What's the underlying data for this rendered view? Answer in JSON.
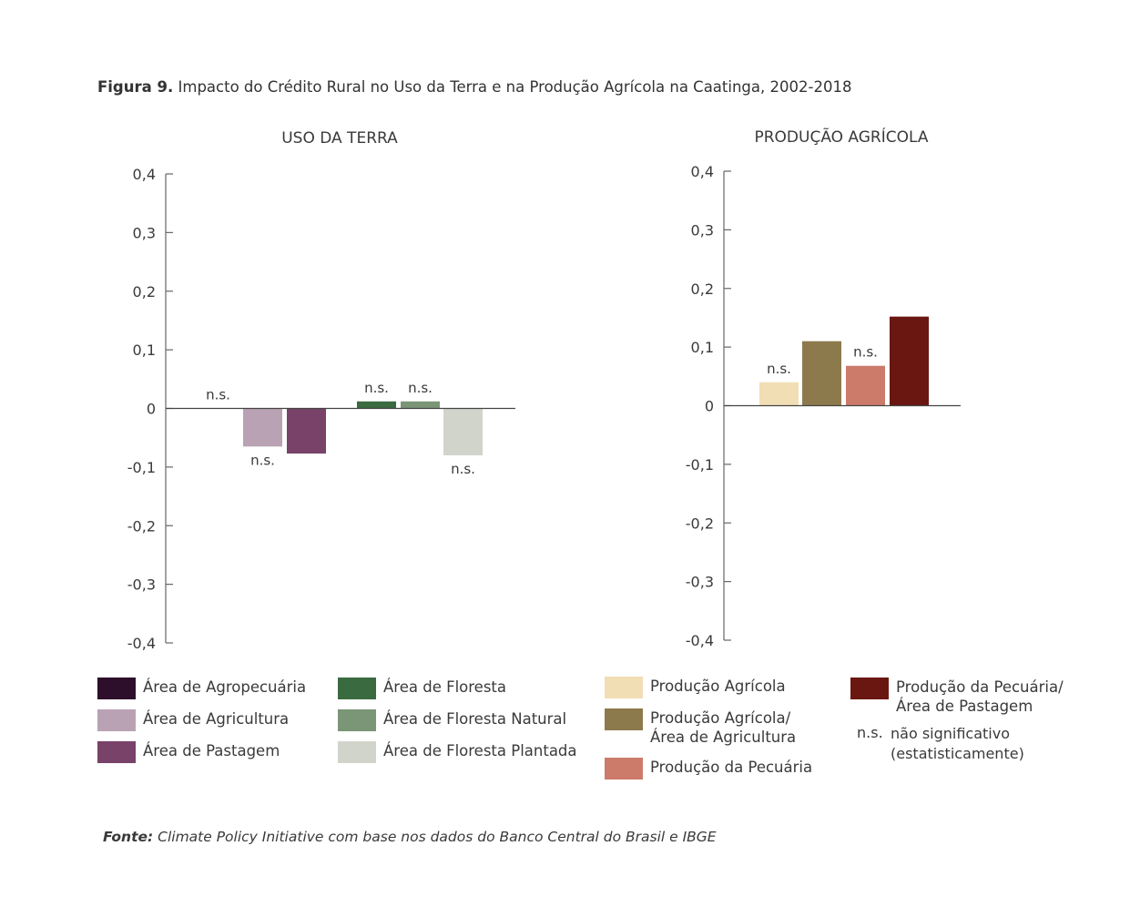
{
  "figure": {
    "label": "Figura 9.",
    "title": "Impacto do Crédito Rural no Uso da Terra e na Produção Agrícola na Caatinga, 2002-2018"
  },
  "chart_data": [
    {
      "type": "bar",
      "title": "USO DA TERRA",
      "ylim": [
        -0.4,
        0.4
      ],
      "yticks": [
        "0,4",
        "0,3",
        "0,2",
        "0,1",
        "0",
        "-0,1",
        "-0,2",
        "-0,3",
        "-0,4"
      ],
      "series": [
        {
          "name": "Área de Agropecuária",
          "value": 0,
          "color": "#2e0f2b",
          "annotation": "n.s."
        },
        {
          "name": "Área de Agricultura",
          "value": -0.065,
          "color": "#b9a2b3",
          "annotation": "n.s."
        },
        {
          "name": "Área de Pastagem",
          "value": -0.077,
          "color": "#784269",
          "annotation": ""
        },
        {
          "name": "Área de Floresta",
          "value": 0.012,
          "color": "#3a6a40",
          "annotation": "n.s."
        },
        {
          "name": "Área de Floresta Natural",
          "value": 0.012,
          "color": "#7a9676",
          "annotation": "n.s."
        },
        {
          "name": "Área de Floresta Plantada",
          "value": -0.08,
          "color": "#d1d4cb",
          "annotation": "n.s."
        }
      ]
    },
    {
      "type": "bar",
      "title": "PRODUÇÃO AGRÍCOLA",
      "ylim": [
        -0.4,
        0.4
      ],
      "yticks": [
        "0,4",
        "0,3",
        "0,2",
        "0,1",
        "0",
        "-0,1",
        "-0,2",
        "-0,3",
        "-0,4"
      ],
      "series": [
        {
          "name": "Produção Agrícola",
          "value": 0.04,
          "color": "#f1deb4",
          "annotation": "n.s."
        },
        {
          "name": "Produção Agrícola/ Área de Agricultura",
          "value": 0.11,
          "color": "#8d7a4c",
          "annotation": ""
        },
        {
          "name": "Produção da Pecuária",
          "value": 0.068,
          "color": "#cc7a6a",
          "annotation": "n.s."
        },
        {
          "name": "Produção da Pecuária/ Área de Pastagem",
          "value": 0.152,
          "color": "#6a1712",
          "annotation": ""
        }
      ]
    }
  ],
  "legend": {
    "col1": [
      {
        "label": "Área de Agropecuária",
        "color": "#2e0f2b"
      },
      {
        "label": "Área de Agricultura",
        "color": "#b9a2b3"
      },
      {
        "label": "Área de Pastagem",
        "color": "#784269"
      }
    ],
    "col2": [
      {
        "label": "Área de Floresta",
        "color": "#3a6a40"
      },
      {
        "label": "Área de Floresta Natural",
        "color": "#7a9676"
      },
      {
        "label": "Área de Floresta Plantada",
        "color": "#d1d4cb"
      }
    ],
    "col3": [
      {
        "label": "Produção Agrícola",
        "color": "#f1deb4"
      },
      {
        "label_line1": "Produção Agrícola/",
        "label_line2": "Área de Agricultura",
        "color": "#8d7a4c"
      },
      {
        "label": "Produção da Pecuária",
        "color": "#cc7a6a"
      }
    ],
    "col4": [
      {
        "label_line1": "Produção da Pecuária/",
        "label_line2": "Área de Pastagem",
        "color": "#6a1712"
      }
    ],
    "ns_note": {
      "abbr": "n.s.",
      "line1": "não significativo",
      "line2": "(estatisticamente)"
    }
  },
  "source": {
    "label": "Fonte:",
    "text": "Climate Policy Initiative com base nos dados do Banco Central do Brasil e IBGE"
  }
}
